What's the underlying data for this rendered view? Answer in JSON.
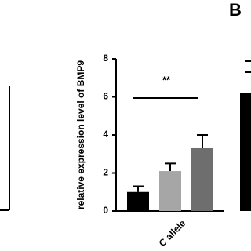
{
  "chart_data": {
    "type": "bar",
    "panel_label": "B",
    "ylabel": "relative expression level of BMP9",
    "categories": [
      "C allele"
    ],
    "series": [
      {
        "color": "#000000",
        "values": [
          1.0
        ],
        "errors": [
          0.3
        ]
      },
      {
        "color": "#a6a6a6",
        "values": [
          2.1
        ],
        "errors": [
          0.4
        ]
      },
      {
        "color": "#6e6e6e",
        "values": [
          3.3
        ],
        "errors": [
          0.7
        ]
      }
    ],
    "annotation": "**",
    "ylim": [
      0,
      8
    ],
    "yticks": [
      0,
      2,
      4,
      6,
      8
    ]
  }
}
